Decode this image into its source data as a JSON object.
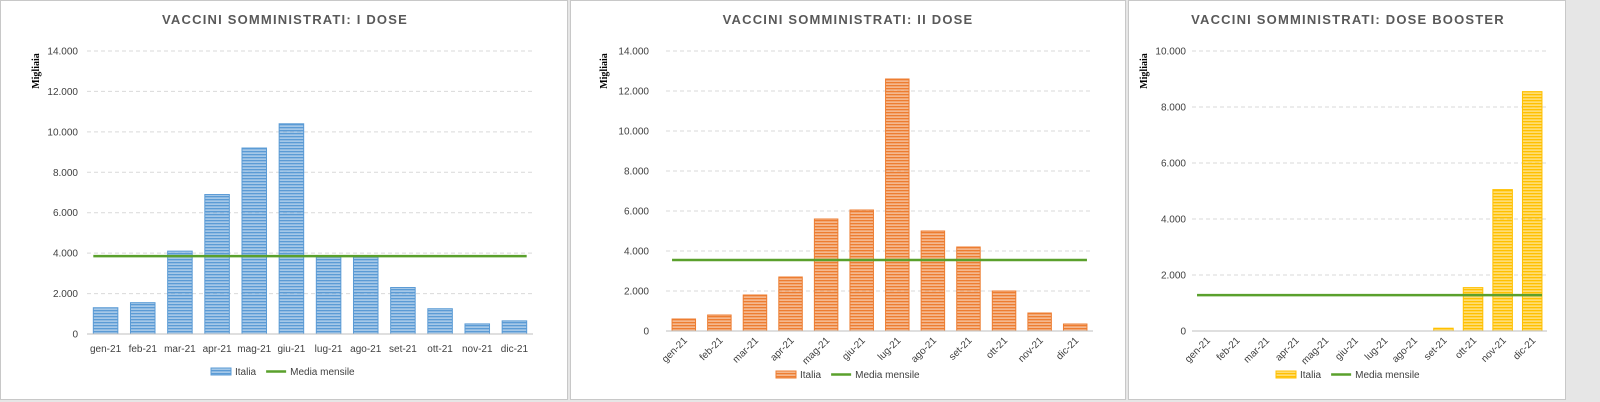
{
  "chart_data": [
    {
      "type": "bar",
      "title": "VACCINI SOMMINISTRATI: I DOSE",
      "ylabel": "Migliaia",
      "categories": [
        "gen-21",
        "feb-21",
        "mar-21",
        "apr-21",
        "mag-21",
        "giu-21",
        "lug-21",
        "ago-21",
        "set-21",
        "ott-21",
        "nov-21",
        "dic-21"
      ],
      "ylim": [
        0,
        14000
      ],
      "yticks": [
        0,
        2000,
        4000,
        6000,
        8000,
        10000,
        12000,
        14000
      ],
      "ytick_labels": [
        "0",
        "2.000",
        "4.000",
        "6.000",
        "8.000",
        "10.000",
        "12.000",
        "14.000"
      ],
      "x_labels_rotated": false,
      "grid": true,
      "legend_position": "bottom",
      "series": [
        {
          "name": "Italia",
          "kind": "bar",
          "color": "#5b9bd5",
          "values": [
            1300,
            1550,
            4100,
            6900,
            9200,
            10400,
            3800,
            3800,
            2300,
            1250,
            500,
            650
          ]
        },
        {
          "name": "Media mensile",
          "kind": "line",
          "color": "#5aa02c",
          "values": [
            3850,
            3850,
            3850,
            3850,
            3850,
            3850,
            3850,
            3850,
            3850,
            3850,
            3850,
            3850
          ]
        }
      ]
    },
    {
      "type": "bar",
      "title": "VACCINI SOMMINISTRATI: II DOSE",
      "ylabel": "Migliaia",
      "categories": [
        "gen-21",
        "feb-21",
        "mar-21",
        "apr-21",
        "mag-21",
        "giu-21",
        "lug-21",
        "ago-21",
        "set-21",
        "ott-21",
        "nov-21",
        "dic-21"
      ],
      "ylim": [
        0,
        14000
      ],
      "yticks": [
        0,
        2000,
        4000,
        6000,
        8000,
        10000,
        12000,
        14000
      ],
      "ytick_labels": [
        "0",
        "2.000",
        "4.000",
        "6.000",
        "8.000",
        "10.000",
        "12.000",
        "14.000"
      ],
      "x_labels_rotated": true,
      "grid": true,
      "legend_position": "bottom",
      "series": [
        {
          "name": "Italia",
          "kind": "bar",
          "color": "#ed7d31",
          "values": [
            600,
            800,
            1800,
            2700,
            5600,
            6050,
            12600,
            5000,
            4200,
            2000,
            900,
            350
          ]
        },
        {
          "name": "Media mensile",
          "kind": "line",
          "color": "#5aa02c",
          "values": [
            3550,
            3550,
            3550,
            3550,
            3550,
            3550,
            3550,
            3550,
            3550,
            3550,
            3550,
            3550
          ]
        }
      ]
    },
    {
      "type": "bar",
      "title": "VACCINI SOMMINISTRATI: DOSE BOOSTER",
      "ylabel": "Migliaia",
      "categories": [
        "gen-21",
        "feb-21",
        "mar-21",
        "apr-21",
        "mag-21",
        "giu-21",
        "lug-21",
        "ago-21",
        "set-21",
        "ott-21",
        "nov-21",
        "dic-21"
      ],
      "ylim": [
        0,
        10000
      ],
      "yticks": [
        0,
        2000,
        4000,
        6000,
        8000,
        10000
      ],
      "ytick_labels": [
        "0",
        "2.000",
        "4.000",
        "6.000",
        "8.000",
        "10.000"
      ],
      "x_labels_rotated": true,
      "grid": true,
      "legend_position": "bottom",
      "series": [
        {
          "name": "Italia",
          "kind": "bar",
          "color": "#ffc000",
          "values": [
            0,
            0,
            0,
            0,
            0,
            0,
            0,
            0,
            100,
            1550,
            5050,
            8550
          ]
        },
        {
          "name": "Media mensile",
          "kind": "line",
          "color": "#5aa02c",
          "values": [
            1280,
            1280,
            1280,
            1280,
            1280,
            1280,
            1280,
            1280,
            1280,
            1280,
            1280,
            1280
          ]
        }
      ]
    }
  ]
}
